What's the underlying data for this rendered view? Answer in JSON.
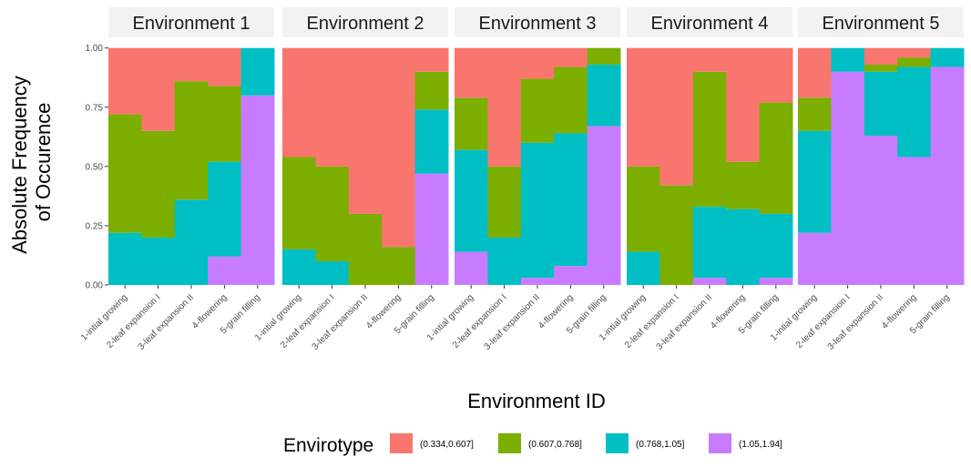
{
  "chart_data": {
    "type": "bar",
    "stacked": true,
    "xlabel": "Environment ID",
    "ylabel_lines": [
      "Absolute Frequency",
      "of Occurence"
    ],
    "ylim": [
      0,
      1
    ],
    "yticks": [
      "0.00",
      "0.25",
      "0.50",
      "0.75",
      "1.00"
    ],
    "categories": [
      "1-intial growing",
      "2-leaf expansion I",
      "3-leaf expansion II",
      "4-flowering",
      "5-grain filling"
    ],
    "legend": {
      "title": "Envirotype",
      "position": "bottom",
      "entries": [
        "(0.334,0.607]",
        "(0.607,0.768]",
        "(0.768,1.05]",
        "(1.05,1.94]"
      ]
    },
    "colors": [
      "#F8766D",
      "#7CAE00",
      "#00BFC4",
      "#C77CFF"
    ],
    "stack_order_bottom_to_top": [
      "(1.05,1.94]",
      "(0.768,1.05]",
      "(0.607,0.768]",
      "(0.334,0.607]"
    ],
    "panels": [
      {
        "label": "Environment 1",
        "series": [
          {
            "name": "(0.334,0.607]",
            "values": [
              0.28,
              0.35,
              0.14,
              0.16,
              0.0
            ]
          },
          {
            "name": "(0.607,0.768]",
            "values": [
              0.5,
              0.45,
              0.5,
              0.32,
              0.0
            ]
          },
          {
            "name": "(0.768,1.05]",
            "values": [
              0.22,
              0.2,
              0.36,
              0.4,
              0.2
            ]
          },
          {
            "name": "(1.05,1.94]",
            "values": [
              0.0,
              0.0,
              0.0,
              0.12,
              0.8
            ]
          }
        ]
      },
      {
        "label": "Environment 2",
        "series": [
          {
            "name": "(0.334,0.607]",
            "values": [
              0.46,
              0.5,
              0.7,
              0.84,
              0.1
            ]
          },
          {
            "name": "(0.607,0.768]",
            "values": [
              0.39,
              0.4,
              0.3,
              0.16,
              0.16
            ]
          },
          {
            "name": "(0.768,1.05]",
            "values": [
              0.15,
              0.1,
              0.0,
              0.0,
              0.27
            ]
          },
          {
            "name": "(1.05,1.94]",
            "values": [
              0.0,
              0.0,
              0.0,
              0.0,
              0.47
            ]
          }
        ]
      },
      {
        "label": "Environment 3",
        "series": [
          {
            "name": "(0.334,0.607]",
            "values": [
              0.21,
              0.5,
              0.13,
              0.08,
              0.0
            ]
          },
          {
            "name": "(0.607,0.768]",
            "values": [
              0.22,
              0.3,
              0.27,
              0.28,
              0.07
            ]
          },
          {
            "name": "(0.768,1.05]",
            "values": [
              0.43,
              0.2,
              0.57,
              0.56,
              0.26
            ]
          },
          {
            "name": "(1.05,1.94]",
            "values": [
              0.14,
              0.0,
              0.03,
              0.08,
              0.67
            ]
          }
        ]
      },
      {
        "label": "Environment 4",
        "series": [
          {
            "name": "(0.334,0.607]",
            "values": [
              0.5,
              0.58,
              0.1,
              0.48,
              0.23
            ]
          },
          {
            "name": "(0.607,0.768]",
            "values": [
              0.36,
              0.42,
              0.57,
              0.2,
              0.47
            ]
          },
          {
            "name": "(0.768,1.05]",
            "values": [
              0.14,
              0.0,
              0.3,
              0.32,
              0.27
            ]
          },
          {
            "name": "(1.05,1.94]",
            "values": [
              0.0,
              0.0,
              0.03,
              0.0,
              0.03
            ]
          }
        ]
      },
      {
        "label": "Environment 5",
        "series": [
          {
            "name": "(0.334,0.607]",
            "values": [
              0.21,
              0.0,
              0.07,
              0.04,
              0.0
            ]
          },
          {
            "name": "(0.607,0.768]",
            "values": [
              0.14,
              0.0,
              0.03,
              0.04,
              0.0
            ]
          },
          {
            "name": "(0.768,1.05]",
            "values": [
              0.43,
              0.1,
              0.27,
              0.38,
              0.08
            ]
          },
          {
            "name": "(1.05,1.94]",
            "values": [
              0.22,
              0.9,
              0.63,
              0.54,
              0.92
            ]
          }
        ]
      }
    ]
  }
}
